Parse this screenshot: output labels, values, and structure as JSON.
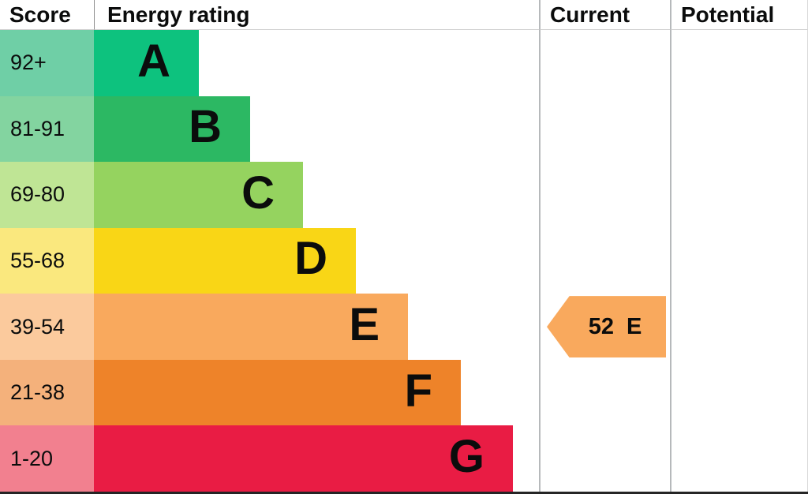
{
  "header": {
    "score": "Score",
    "energy_rating": "Energy rating",
    "current": "Current",
    "potential": "Potential"
  },
  "bands": [
    {
      "letter": "A",
      "score": "92+",
      "bar_color": "#0dc27e",
      "score_color": "#6fcfa6"
    },
    {
      "letter": "B",
      "score": "81-91",
      "bar_color": "#2cb863",
      "score_color": "#83d4a0"
    },
    {
      "letter": "C",
      "score": "69-80",
      "bar_color": "#95d35f",
      "score_color": "#bfe595"
    },
    {
      "letter": "D",
      "score": "55-68",
      "bar_color": "#f9d616",
      "score_color": "#fae87e"
    },
    {
      "letter": "E",
      "score": "39-54",
      "bar_color": "#f9a95d",
      "score_color": "#fbca9d"
    },
    {
      "letter": "F",
      "score": "21-38",
      "bar_color": "#ee8329",
      "score_color": "#f4b17b"
    },
    {
      "letter": "G",
      "score": "1-20",
      "bar_color": "#e91c44",
      "score_color": "#f2808f"
    }
  ],
  "current_marker": {
    "value": "52",
    "letter": "E",
    "color": "#f9a95d"
  },
  "chart_data": {
    "type": "bar",
    "title": "Energy rating",
    "categories": [
      "A",
      "B",
      "C",
      "D",
      "E",
      "F",
      "G"
    ],
    "score_ranges": [
      "92+",
      "81-91",
      "69-80",
      "55-68",
      "39-54",
      "21-38",
      "1-20"
    ],
    "bar_colors": [
      "#0dc27e",
      "#2cb863",
      "#95d35f",
      "#f9d616",
      "#f9a95d",
      "#ee8329",
      "#e91c44"
    ],
    "columns": [
      "Score",
      "Energy rating",
      "Current",
      "Potential"
    ],
    "current": {
      "value": 52,
      "band": "E"
    },
    "legend_position": "none",
    "grid": false
  }
}
